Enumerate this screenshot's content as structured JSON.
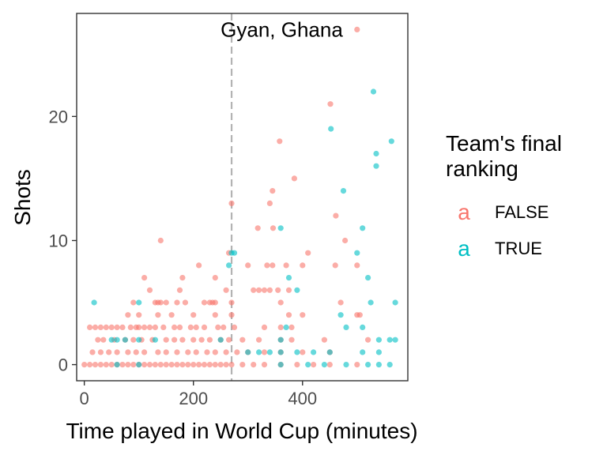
{
  "chart_data": {
    "type": "scatter",
    "xlabel": "Time played in World Cup (minutes)",
    "ylabel": "Shots",
    "xlim": [
      -14,
      593
    ],
    "ylim": [
      -1.3,
      28.3
    ],
    "xticks": [
      0,
      200,
      400
    ],
    "yticks": [
      0,
      10,
      20
    ],
    "xtick_labels": [
      "0",
      "200",
      "400"
    ],
    "ytick_labels": [
      "0",
      "10",
      "20"
    ],
    "vline": 270,
    "annotation": {
      "text": "Gyan, Ghana",
      "x": 500,
      "y": 27
    },
    "legend": {
      "title_lines": [
        "Team's final",
        "ranking"
      ],
      "placement": "right",
      "entries": [
        {
          "label": "FALSE",
          "glyph": "a",
          "color": "#F8766D"
        },
        {
          "label": "TRUE",
          "glyph": "a",
          "color": "#00BFC4"
        }
      ]
    },
    "series": [
      {
        "name": "FALSE",
        "color": "#F8766D",
        "points": [
          [
            500,
            27
          ],
          [
            451,
            21
          ],
          [
            358,
            18
          ],
          [
            385,
            15
          ],
          [
            345,
            14
          ],
          [
            340,
            13
          ],
          [
            270,
            13
          ],
          [
            461,
            12
          ],
          [
            346,
            11
          ],
          [
            318,
            11
          ],
          [
            478,
            10
          ],
          [
            140,
            10
          ],
          [
            265,
            9
          ],
          [
            410,
            9
          ],
          [
            210,
            8
          ],
          [
            300,
            8
          ],
          [
            335,
            8
          ],
          [
            345,
            8
          ],
          [
            370,
            8
          ],
          [
            400,
            8
          ],
          [
            460,
            8
          ],
          [
            500,
            8
          ],
          [
            110,
            7
          ],
          [
            180,
            7
          ],
          [
            240,
            7
          ],
          [
            120,
            6
          ],
          [
            175,
            6
          ],
          [
            260,
            6
          ],
          [
            355,
            6
          ],
          [
            340,
            6
          ],
          [
            330,
            6
          ],
          [
            320,
            6
          ],
          [
            310,
            6
          ],
          [
            375,
            6
          ],
          [
            90,
            5
          ],
          [
            130,
            5
          ],
          [
            135,
            5
          ],
          [
            140,
            5
          ],
          [
            150,
            5
          ],
          [
            170,
            5
          ],
          [
            185,
            5
          ],
          [
            220,
            5
          ],
          [
            230,
            5
          ],
          [
            235,
            5
          ],
          [
            240,
            5
          ],
          [
            270,
            5
          ],
          [
            360,
            5
          ],
          [
            470,
            5
          ],
          [
            80,
            4
          ],
          [
            100,
            4
          ],
          [
            135,
            4
          ],
          [
            160,
            4
          ],
          [
            200,
            4
          ],
          [
            240,
            4
          ],
          [
            270,
            4
          ],
          [
            375,
            4
          ],
          [
            400,
            4
          ],
          [
            500,
            4
          ],
          [
            505,
            4
          ],
          [
            70,
            3
          ],
          [
            95,
            3
          ],
          [
            120,
            3
          ],
          [
            165,
            3
          ],
          [
            195,
            3
          ],
          [
            220,
            3
          ],
          [
            255,
            3
          ],
          [
            275,
            3
          ],
          [
            330,
            3
          ],
          [
            380,
            3
          ],
          [
            360,
            3
          ],
          [
            10,
            3
          ],
          [
            20,
            3
          ],
          [
            30,
            3
          ],
          [
            40,
            3
          ],
          [
            50,
            3
          ],
          [
            60,
            3
          ],
          [
            85,
            3
          ],
          [
            100,
            3
          ],
          [
            110,
            3
          ],
          [
            130,
            3
          ],
          [
            145,
            3
          ],
          [
            175,
            3
          ],
          [
            205,
            3
          ],
          [
            245,
            3
          ],
          [
            25,
            2
          ],
          [
            35,
            2
          ],
          [
            55,
            2
          ],
          [
            75,
            2
          ],
          [
            90,
            2
          ],
          [
            105,
            2
          ],
          [
            125,
            2
          ],
          [
            150,
            2
          ],
          [
            165,
            2
          ],
          [
            180,
            2
          ],
          [
            200,
            2
          ],
          [
            215,
            2
          ],
          [
            230,
            2
          ],
          [
            250,
            2
          ],
          [
            265,
            2
          ],
          [
            290,
            2
          ],
          [
            320,
            2
          ],
          [
            360,
            2
          ],
          [
            380,
            2
          ],
          [
            440,
            2
          ],
          [
            520,
            2
          ],
          [
            15,
            1
          ],
          [
            30,
            1
          ],
          [
            45,
            1
          ],
          [
            60,
            1
          ],
          [
            80,
            1
          ],
          [
            95,
            1
          ],
          [
            110,
            1
          ],
          [
            135,
            1
          ],
          [
            150,
            1
          ],
          [
            170,
            1
          ],
          [
            190,
            1
          ],
          [
            205,
            1
          ],
          [
            225,
            1
          ],
          [
            240,
            1
          ],
          [
            260,
            1
          ],
          [
            280,
            1
          ],
          [
            300,
            1
          ],
          [
            330,
            1
          ],
          [
            360,
            1
          ],
          [
            400,
            1
          ],
          [
            450,
            1
          ],
          [
            0,
            0
          ],
          [
            10,
            0
          ],
          [
            20,
            0
          ],
          [
            30,
            0
          ],
          [
            40,
            0
          ],
          [
            50,
            0
          ],
          [
            60,
            0
          ],
          [
            70,
            0
          ],
          [
            80,
            0
          ],
          [
            90,
            0
          ],
          [
            100,
            0
          ],
          [
            110,
            0
          ],
          [
            120,
            0
          ],
          [
            130,
            0
          ],
          [
            140,
            0
          ],
          [
            150,
            0
          ],
          [
            160,
            0
          ],
          [
            170,
            0
          ],
          [
            180,
            0
          ],
          [
            190,
            0
          ],
          [
            200,
            0
          ],
          [
            210,
            0
          ],
          [
            220,
            0
          ],
          [
            230,
            0
          ],
          [
            240,
            0
          ],
          [
            250,
            0
          ],
          [
            260,
            0
          ],
          [
            270,
            0
          ],
          [
            290,
            0
          ],
          [
            310,
            0
          ],
          [
            330,
            0
          ],
          [
            360,
            0
          ],
          [
            390,
            0
          ],
          [
            420,
            0
          ],
          [
            450,
            0
          ],
          [
            500,
            0
          ]
        ]
      },
      {
        "name": "TRUE",
        "color": "#00BFC4",
        "points": [
          [
            530,
            22
          ],
          [
            452,
            19
          ],
          [
            535,
            17
          ],
          [
            563,
            18
          ],
          [
            535,
            16
          ],
          [
            475,
            14
          ],
          [
            360,
            11
          ],
          [
            510,
            11
          ],
          [
            270,
            9
          ],
          [
            275,
            9
          ],
          [
            500,
            9
          ],
          [
            375,
            7
          ],
          [
            390,
            6
          ],
          [
            18,
            5
          ],
          [
            100,
            5
          ],
          [
            265,
            8
          ],
          [
            520,
            7
          ],
          [
            525,
            5
          ],
          [
            570,
            5
          ],
          [
            470,
            4
          ],
          [
            480,
            3
          ],
          [
            370,
            3
          ],
          [
            510,
            3
          ],
          [
            540,
            2
          ],
          [
            560,
            2
          ],
          [
            570,
            2
          ],
          [
            360,
            2
          ],
          [
            130,
            2
          ],
          [
            50,
            2
          ],
          [
            60,
            2
          ],
          [
            75,
            2
          ],
          [
            100,
            2
          ],
          [
            250,
            2
          ],
          [
            300,
            1
          ],
          [
            320,
            1
          ],
          [
            340,
            1
          ],
          [
            360,
            1
          ],
          [
            390,
            1
          ],
          [
            420,
            1
          ],
          [
            450,
            1
          ],
          [
            510,
            1
          ],
          [
            540,
            1
          ],
          [
            360,
            0
          ],
          [
            410,
            0
          ],
          [
            440,
            0
          ],
          [
            480,
            0
          ],
          [
            520,
            0
          ],
          [
            540,
            0
          ],
          [
            560,
            0
          ],
          [
            60,
            0
          ],
          [
            100,
            0
          ]
        ]
      }
    ]
  }
}
